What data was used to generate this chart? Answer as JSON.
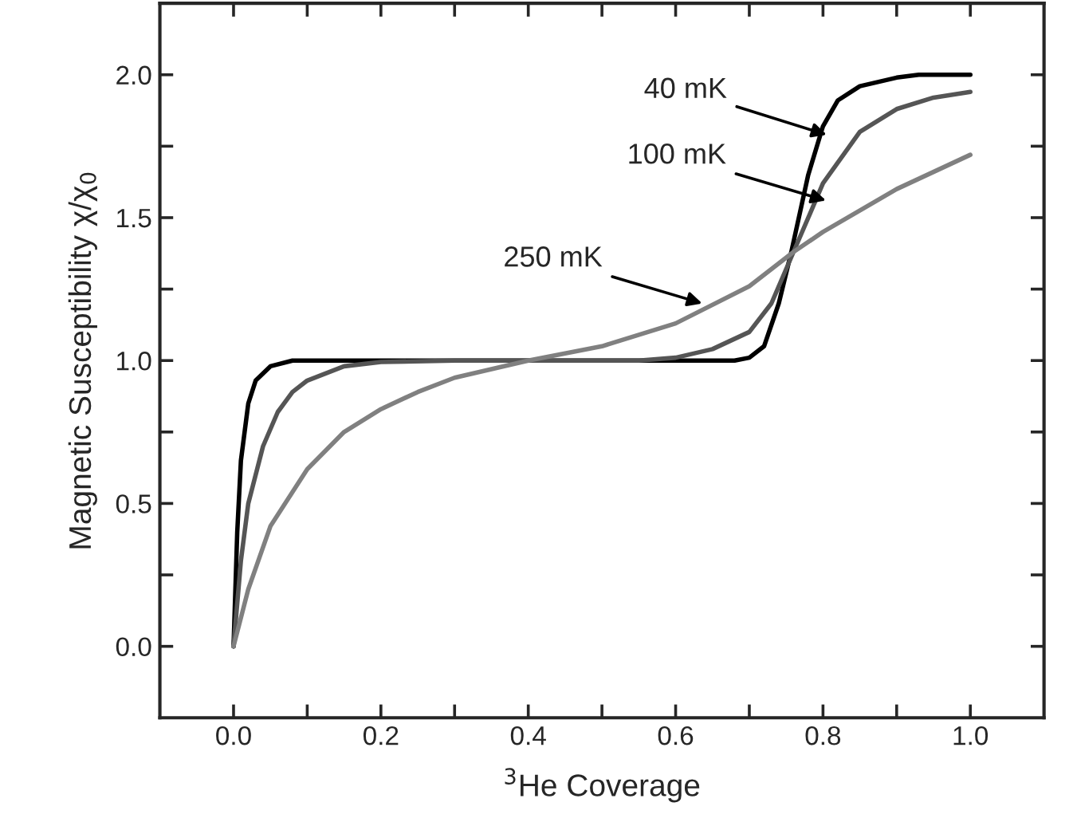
{
  "chart_data": {
    "type": "line",
    "xlabel": "$^{3}$He Coverage",
    "ylabel": "Magnetic Susceptibility χ/χ$_{0}$",
    "xlim": [
      -0.1,
      1.1
    ],
    "ylim": [
      -0.25,
      2.25
    ],
    "xticks": [
      {
        "value": 0.0,
        "label": "0.0"
      },
      {
        "value": 0.1,
        "label": null
      },
      {
        "value": 0.2,
        "label": "0.2"
      },
      {
        "value": 0.3,
        "label": null
      },
      {
        "value": 0.4,
        "label": "0.4"
      },
      {
        "value": 0.5,
        "label": null
      },
      {
        "value": 0.6,
        "label": "0.6"
      },
      {
        "value": 0.7,
        "label": null
      },
      {
        "value": 0.8,
        "label": "0.8"
      },
      {
        "value": 0.9,
        "label": null
      },
      {
        "value": 1.0,
        "label": "1.0"
      }
    ],
    "yticks": [
      {
        "value": 0.0,
        "label": "0.0"
      },
      {
        "value": 0.25,
        "label": null
      },
      {
        "value": 0.5,
        "label": "0.5"
      },
      {
        "value": 0.75,
        "label": null
      },
      {
        "value": 1.0,
        "label": "1.0"
      },
      {
        "value": 1.25,
        "label": null
      },
      {
        "value": 1.5,
        "label": "1.5"
      },
      {
        "value": 1.75,
        "label": null
      },
      {
        "value": 2.0,
        "label": "2.0"
      }
    ],
    "grid": false,
    "legend": false,
    "marker": "none",
    "line_style": "solid",
    "series": [
      {
        "color": "#000000",
        "x": [
          0,
          0.005,
          0.01,
          0.02,
          0.03,
          0.05,
          0.08,
          0.2,
          0.4,
          0.6,
          0.68,
          0.7,
          0.72,
          0.74,
          0.757,
          0.78,
          0.8,
          0.82,
          0.85,
          0.9,
          0.93,
          1.0
        ],
        "values": [
          0,
          0.4,
          0.65,
          0.85,
          0.93,
          0.98,
          1.0,
          1.0,
          1.0,
          1.0,
          1.0,
          1.01,
          1.05,
          1.2,
          1.38,
          1.65,
          1.82,
          1.91,
          1.96,
          1.99,
          2.0,
          2.0
        ]
      },
      {
        "color": "#555555",
        "x": [
          0,
          0.01,
          0.02,
          0.04,
          0.06,
          0.08,
          0.1,
          0.15,
          0.2,
          0.3,
          0.4,
          0.55,
          0.6,
          0.65,
          0.7,
          0.73,
          0.76,
          0.8,
          0.85,
          0.9,
          0.95,
          1.0
        ],
        "values": [
          0,
          0.3,
          0.5,
          0.7,
          0.82,
          0.89,
          0.93,
          0.98,
          0.995,
          1.0,
          1.0,
          1.0,
          1.01,
          1.04,
          1.1,
          1.2,
          1.38,
          1.62,
          1.8,
          1.88,
          1.92,
          1.94
        ]
      },
      {
        "color": "#808080",
        "x": [
          0,
          0.02,
          0.05,
          0.1,
          0.15,
          0.2,
          0.25,
          0.3,
          0.4,
          0.5,
          0.6,
          0.7,
          0.76,
          0.8,
          0.9,
          1.0
        ],
        "values": [
          0,
          0.2,
          0.42,
          0.62,
          0.75,
          0.83,
          0.89,
          0.94,
          1.0,
          1.05,
          1.13,
          1.26,
          1.38,
          1.45,
          1.6,
          1.72
        ]
      }
    ],
    "annotations": [
      {
        "text": "40 mK",
        "x": 0.805,
        "y": 1.79
      },
      {
        "text": "100 mK",
        "x": 0.804,
        "y": 1.56
      },
      {
        "text": "250 mK",
        "x": 0.636,
        "y": 1.2
      }
    ]
  }
}
